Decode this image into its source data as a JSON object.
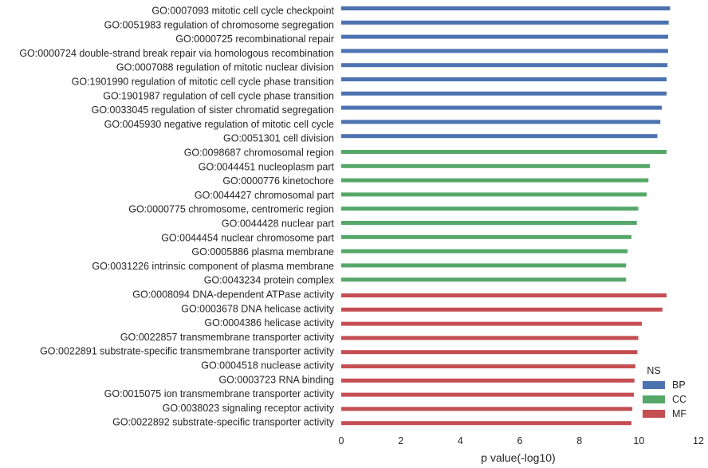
{
  "chart_data": {
    "type": "bar",
    "orientation": "horizontal",
    "xlabel": "p value(-log10)",
    "ylabel": "",
    "title": "",
    "xlim": [
      0,
      12
    ],
    "xticks": [
      0,
      2,
      4,
      6,
      8,
      10,
      12
    ],
    "grid": false,
    "legend": {
      "title": "NS",
      "placement": "bottom-right",
      "entries": [
        {
          "name": "BP",
          "color": "#4c72b0"
        },
        {
          "name": "CC",
          "color": "#55a868"
        },
        {
          "name": "MF",
          "color": "#c44e52"
        }
      ]
    },
    "groups": [
      {
        "name": "BP",
        "color": "#4c72b0",
        "items": [
          {
            "label": "GO:0007093 mitotic cell cycle checkpoint",
            "value": 11.05
          },
          {
            "label": "GO:0051983 regulation of chromosome segregation",
            "value": 11.0
          },
          {
            "label": "GO:0000725 recombinational repair",
            "value": 10.98
          },
          {
            "label": "GO:0000724 double-strand break repair via homologous recombination",
            "value": 10.98
          },
          {
            "label": "GO:0007088 regulation of mitotic nuclear division",
            "value": 10.96
          },
          {
            "label": "GO:1901990 regulation of mitotic cell cycle phase transition",
            "value": 10.93
          },
          {
            "label": "GO:1901987 regulation of cell cycle phase transition",
            "value": 10.93
          },
          {
            "label": "GO:0033045 regulation of sister chromatid segregation",
            "value": 10.77
          },
          {
            "label": "GO:0045930 negative regulation of mitotic cell cycle",
            "value": 10.72
          },
          {
            "label": "GO:0051301 cell division",
            "value": 10.62
          }
        ]
      },
      {
        "name": "CC",
        "color": "#55a868",
        "items": [
          {
            "label": "GO:0098687 chromosomal region",
            "value": 10.93
          },
          {
            "label": "GO:0044451 nucleoplasm part",
            "value": 10.37
          },
          {
            "label": "GO:0000776 kinetochore",
            "value": 10.32
          },
          {
            "label": "GO:0044427 chromosomal part",
            "value": 10.26
          },
          {
            "label": "GO:0000775 chromosome, centromeric region",
            "value": 9.98
          },
          {
            "label": "GO:0044428 nuclear part",
            "value": 9.93
          },
          {
            "label": "GO:0044454 nuclear chromosome part",
            "value": 9.75
          },
          {
            "label": "GO:0005886 plasma membrane",
            "value": 9.62
          },
          {
            "label": "GO:0031226 intrinsic component of plasma membrane",
            "value": 9.57
          },
          {
            "label": "GO:0043234 protein complex",
            "value": 9.57
          }
        ]
      },
      {
        "name": "MF",
        "color": "#c44e52",
        "items": [
          {
            "label": "GO:0008094 DNA-dependent ATPase activity",
            "value": 10.93
          },
          {
            "label": "GO:0003678 DNA helicase activity",
            "value": 10.79
          },
          {
            "label": "GO:0004386 helicase activity",
            "value": 10.1
          },
          {
            "label": "GO:0022857 transmembrane transporter activity",
            "value": 9.98
          },
          {
            "label": "GO:0022891 substrate-specific transmembrane transporter activity",
            "value": 9.95
          },
          {
            "label": "GO:0004518 nuclease activity",
            "value": 9.88
          },
          {
            "label": "GO:0003723 RNA binding",
            "value": 9.85
          },
          {
            "label": "GO:0015075 ion transmembrane transporter activity",
            "value": 9.83
          },
          {
            "label": "GO:0038023 signaling receptor activity",
            "value": 9.78
          },
          {
            "label": "GO:0022892 substrate-specific transporter activity",
            "value": 9.75
          }
        ]
      }
    ]
  }
}
